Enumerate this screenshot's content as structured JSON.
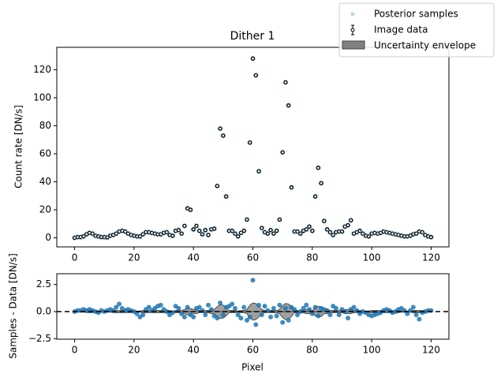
{
  "chart_data": [
    {
      "type": "scatter",
      "title": "Dither 1",
      "y_label": "Count rate [DN/s]",
      "x": [
        0,
        1,
        2,
        3,
        4,
        5,
        6,
        7,
        8,
        9,
        10,
        11,
        12,
        13,
        14,
        15,
        16,
        17,
        18,
        19,
        20,
        21,
        22,
        23,
        24,
        25,
        26,
        27,
        28,
        29,
        30,
        31,
        32,
        33,
        34,
        35,
        36,
        37,
        38,
        39,
        40,
        41,
        42,
        43,
        44,
        45,
        46,
        47,
        48,
        49,
        50,
        51,
        52,
        53,
        54,
        55,
        56,
        57,
        58,
        59,
        60,
        61,
        62,
        63,
        64,
        65,
        66,
        67,
        68,
        69,
        70,
        71,
        72,
        73,
        74,
        75,
        76,
        77,
        78,
        79,
        80,
        81,
        82,
        83,
        84,
        85,
        86,
        87,
        88,
        89,
        90,
        91,
        92,
        93,
        94,
        95,
        96,
        97,
        98,
        99,
        100,
        101,
        102,
        103,
        104,
        105,
        106,
        107,
        108,
        109,
        110,
        111,
        112,
        113,
        114,
        115,
        116,
        117,
        118,
        119,
        120
      ],
      "series": [
        {
          "name": "Image data",
          "color": "#000000",
          "halo_color": "#a6d4ec",
          "values": [
            0,
            0.5,
            0.5,
            1,
            2.5,
            3.5,
            3,
            1.5,
            1,
            0.5,
            0.5,
            0.3,
            1.5,
            2,
            3,
            4.5,
            5,
            4.5,
            3,
            2,
            1.5,
            1,
            1,
            2.5,
            4,
            4,
            3.5,
            3,
            2.5,
            2.5,
            3.5,
            4,
            2,
            1.5,
            5,
            5.5,
            3,
            8.5,
            21,
            20,
            6,
            8.5,
            5,
            2.5,
            5.5,
            2,
            6,
            6.5,
            37,
            78,
            73,
            29.5,
            5,
            5,
            3,
            1,
            3.5,
            5,
            13,
            68,
            128,
            116,
            47.5,
            7,
            4,
            3,
            5.5,
            3,
            5,
            13,
            61,
            111,
            94.5,
            36,
            4.5,
            4.5,
            3,
            5,
            6,
            8,
            5,
            29.5,
            50,
            39,
            12,
            6,
            4,
            2,
            4,
            4.5,
            4.5,
            8,
            9,
            12.5,
            3,
            4,
            5,
            3,
            1.5,
            1,
            3,
            3.5,
            3,
            3.5,
            4.5,
            4,
            3.5,
            3,
            2.5,
            2,
            1.5,
            1,
            1,
            1.5,
            2.5,
            3,
            4.5,
            4,
            2,
            1,
            0.5
          ]
        }
      ],
      "xlim": [
        -6,
        126
      ],
      "ylim": [
        -6.5,
        136
      ],
      "xticks": [
        0,
        20,
        40,
        60,
        80,
        100,
        120
      ],
      "yticks": [
        0,
        20,
        40,
        60,
        80,
        100,
        120
      ]
    },
    {
      "type": "residual",
      "x_label": "Pixel",
      "y_label": "Samples - Data [DN/s]",
      "x": [
        0,
        1,
        2,
        3,
        4,
        5,
        6,
        7,
        8,
        9,
        10,
        11,
        12,
        13,
        14,
        15,
        16,
        17,
        18,
        19,
        20,
        21,
        22,
        23,
        24,
        25,
        26,
        27,
        28,
        29,
        30,
        31,
        32,
        33,
        34,
        35,
        36,
        37,
        38,
        39,
        40,
        41,
        42,
        43,
        44,
        45,
        46,
        47,
        48,
        49,
        50,
        51,
        52,
        53,
        54,
        55,
        56,
        57,
        58,
        59,
        60,
        61,
        62,
        63,
        64,
        65,
        66,
        67,
        68,
        69,
        70,
        71,
        72,
        73,
        74,
        75,
        76,
        77,
        78,
        79,
        80,
        81,
        82,
        83,
        84,
        85,
        86,
        87,
        88,
        89,
        90,
        91,
        92,
        93,
        94,
        95,
        96,
        97,
        98,
        99,
        100,
        101,
        102,
        103,
        104,
        105,
        106,
        107,
        108,
        109,
        110,
        111,
        112,
        113,
        114,
        115,
        116,
        117,
        118,
        119,
        120
      ],
      "series": [
        {
          "name": "Posterior samples",
          "color": "#1f77b4",
          "values": [
            0.0,
            0.1,
            0.1,
            0.2,
            0.1,
            0.2,
            0.1,
            0.0,
            -0.1,
            0.1,
            0.0,
            0.1,
            0.2,
            0.1,
            0.4,
            0.7,
            0.3,
            0.1,
            0.2,
            0.1,
            0.0,
            -0.2,
            -0.5,
            -0.3,
            0.2,
            0.4,
            0.1,
            0.3,
            0.5,
            0.6,
            0.2,
            0.0,
            -0.3,
            -0.1,
            0.5,
            0.3,
            -0.2,
            -0.5,
            0.4,
            -0.3,
            -0.5,
            0.3,
            0.4,
            0.1,
            -0.3,
            0.6,
            0.2,
            -0.4,
            -0.6,
            0.8,
            -0.3,
            0.4,
            0.5,
            0.7,
            0.3,
            -0.3,
            -0.6,
            0.4,
            -0.8,
            -0.5,
            2.9,
            -1.2,
            0.6,
            -0.3,
            0.5,
            0.1,
            -0.5,
            0.3,
            -0.4,
            0.6,
            -1.0,
            0.3,
            -0.8,
            0.4,
            0.2,
            -0.3,
            0.0,
            0.3,
            0.6,
            0.2,
            -0.2,
            0.4,
            -0.4,
            0.3,
            0.2,
            0.1,
            -0.3,
            0.5,
            0.3,
            -0.3,
            0.2,
            0.0,
            -0.6,
            0.2,
            0.4,
            0.1,
            -0.2,
            0.0,
            -0.1,
            -0.3,
            -0.4,
            -0.3,
            -0.2,
            -0.1,
            0.1,
            0.2,
            0.1,
            -0.1,
            0.0,
            0.2,
            0.3,
            0.1,
            -0.2,
            0.1,
            0.4,
            -0.3,
            -0.7,
            -0.1,
            0.0,
            0.1,
            0.1
          ]
        },
        {
          "name": "Uncertainty envelope",
          "color": "#808080",
          "values": [
            0.05,
            0.05,
            0.05,
            0.05,
            0.1,
            0.1,
            0.1,
            0.05,
            0.05,
            0.05,
            0.05,
            0.05,
            0.05,
            0.1,
            0.1,
            0.1,
            0.1,
            0.1,
            0.1,
            0.1,
            0.05,
            0.05,
            0.05,
            0.1,
            0.1,
            0.1,
            0.1,
            0.1,
            0.1,
            0.1,
            0.1,
            0.1,
            0.1,
            0.05,
            0.1,
            0.1,
            0.1,
            0.2,
            0.3,
            0.3,
            0.2,
            0.2,
            0.1,
            0.1,
            0.1,
            0.1,
            0.2,
            0.2,
            0.45,
            0.65,
            0.6,
            0.4,
            0.1,
            0.1,
            0.1,
            0.05,
            0.1,
            0.1,
            0.2,
            0.6,
            0.8,
            0.75,
            0.5,
            0.2,
            0.1,
            0.1,
            0.1,
            0.1,
            0.1,
            0.2,
            0.55,
            0.75,
            0.7,
            0.45,
            0.1,
            0.1,
            0.1,
            0.1,
            0.2,
            0.2,
            0.1,
            0.4,
            0.5,
            0.45,
            0.2,
            0.2,
            0.1,
            0.1,
            0.1,
            0.1,
            0.1,
            0.2,
            0.2,
            0.2,
            0.1,
            0.1,
            0.1,
            0.1,
            0.05,
            0.05,
            0.1,
            0.1,
            0.1,
            0.1,
            0.1,
            0.1,
            0.1,
            0.1,
            0.1,
            0.1,
            0.05,
            0.05,
            0.05,
            0.05,
            0.1,
            0.1,
            0.1,
            0.1,
            0.1,
            0.05,
            0.05
          ]
        }
      ],
      "hline": 0,
      "xlim": [
        -6,
        126
      ],
      "ylim": [
        -2.55,
        3.5
      ],
      "xticks": [
        0,
        20,
        40,
        60,
        80,
        100,
        120
      ],
      "yticks": [
        {
          "value": 2.5,
          "label": "2.5"
        },
        {
          "value": 0,
          "label": "0.0"
        },
        {
          "value": -2.5,
          "label": "−2.5"
        }
      ]
    }
  ]
}
